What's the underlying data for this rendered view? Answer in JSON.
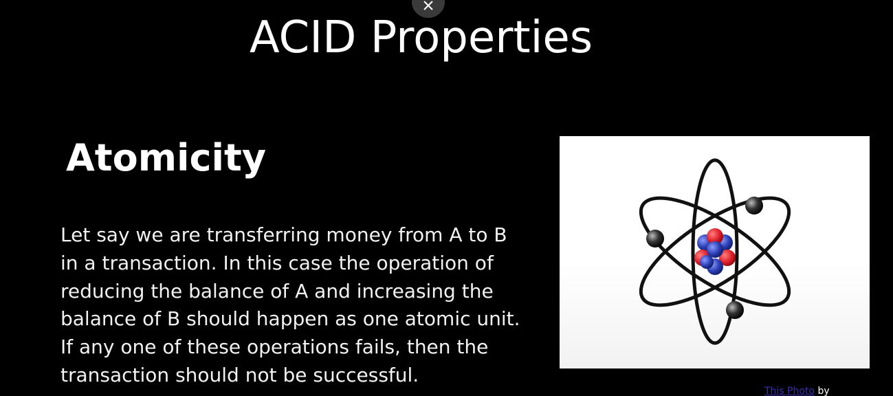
{
  "slide": {
    "title": "ACID Properties",
    "heading": "Atomicity",
    "body_lines": [
      "Let say we are transferring money from A to B",
      "in a transaction. In this case the operation of",
      "reducing the balance of A and increasing the",
      "balance of B should happen as one atomic unit.",
      "If any one of these operations fails, then the",
      "transaction should not be successful."
    ],
    "image_icon": "atom-icon",
    "credit": {
      "link_text": "This Photo",
      "suffix": " by"
    }
  },
  "overlay": {
    "close_icon": "close-icon"
  },
  "colors": {
    "background": "#000000",
    "text": "#ffffff",
    "proton": "#e0202a",
    "neutron": "#2b3fb5",
    "electron": "#1a1a1a",
    "link": "#3b2fb0"
  }
}
